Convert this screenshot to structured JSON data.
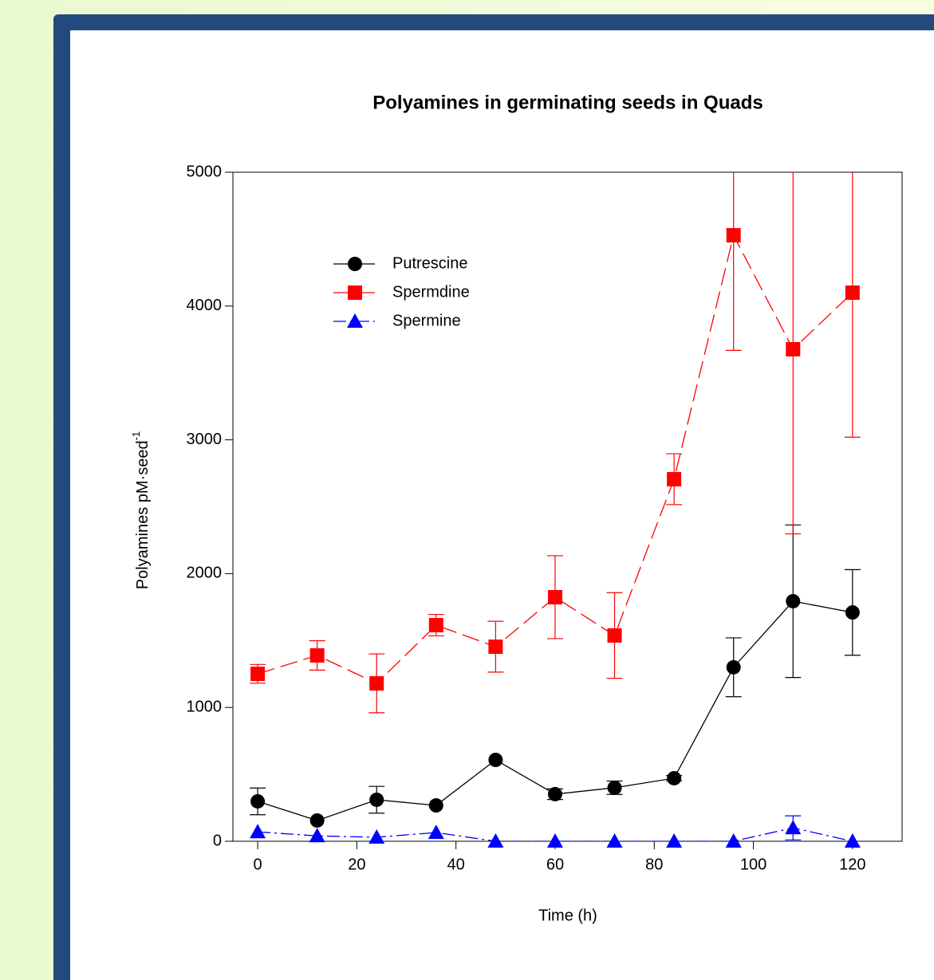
{
  "chart_data": {
    "type": "line",
    "title": "Polyamines in germinating seeds in Quads",
    "x_label": "Time (h)",
    "y_label": "Polyamines pM·seed",
    "y_label_superscript": "-1",
    "x": [
      0,
      12,
      24,
      36,
      48,
      60,
      72,
      84,
      96,
      108,
      120
    ],
    "series": [
      {
        "name": "Putrescine",
        "color": "#000000",
        "marker": "circle",
        "linestyle": "solid",
        "values": [
          298,
          155,
          310,
          268,
          608,
          352,
          400,
          471,
          1300,
          1794,
          1710
        ],
        "errors": [
          100,
          0,
          100,
          0,
          0,
          40,
          50,
          20,
          220,
          570,
          320
        ]
      },
      {
        "name": "Spermdine",
        "color": "#ff0000",
        "marker": "square",
        "linestyle": "dashed",
        "values": [
          1251,
          1389,
          1180,
          1615,
          1454,
          1824,
          1538,
          2706,
          4529,
          3677,
          4100
        ],
        "errors": [
          70,
          110,
          220,
          80,
          190,
          310,
          320,
          190,
          860,
          1380,
          1080
        ]
      },
      {
        "name": "Spermine",
        "color": "#0000ff",
        "marker": "triangle",
        "linestyle": "dashdot",
        "values": [
          70,
          40,
          30,
          65,
          0,
          0,
          0,
          0,
          0,
          100,
          0
        ],
        "errors": [
          0,
          0,
          0,
          0,
          0,
          0,
          0,
          0,
          0,
          90,
          0
        ]
      }
    ],
    "xlim": [
      -5,
      130
    ],
    "xticks": [
      0,
      20,
      40,
      60,
      80,
      100,
      120
    ],
    "ylim": [
      0,
      5000
    ],
    "yticks": [
      0,
      1000,
      2000,
      3000,
      4000,
      5000
    ],
    "legend": "upper left",
    "grid": false
  }
}
